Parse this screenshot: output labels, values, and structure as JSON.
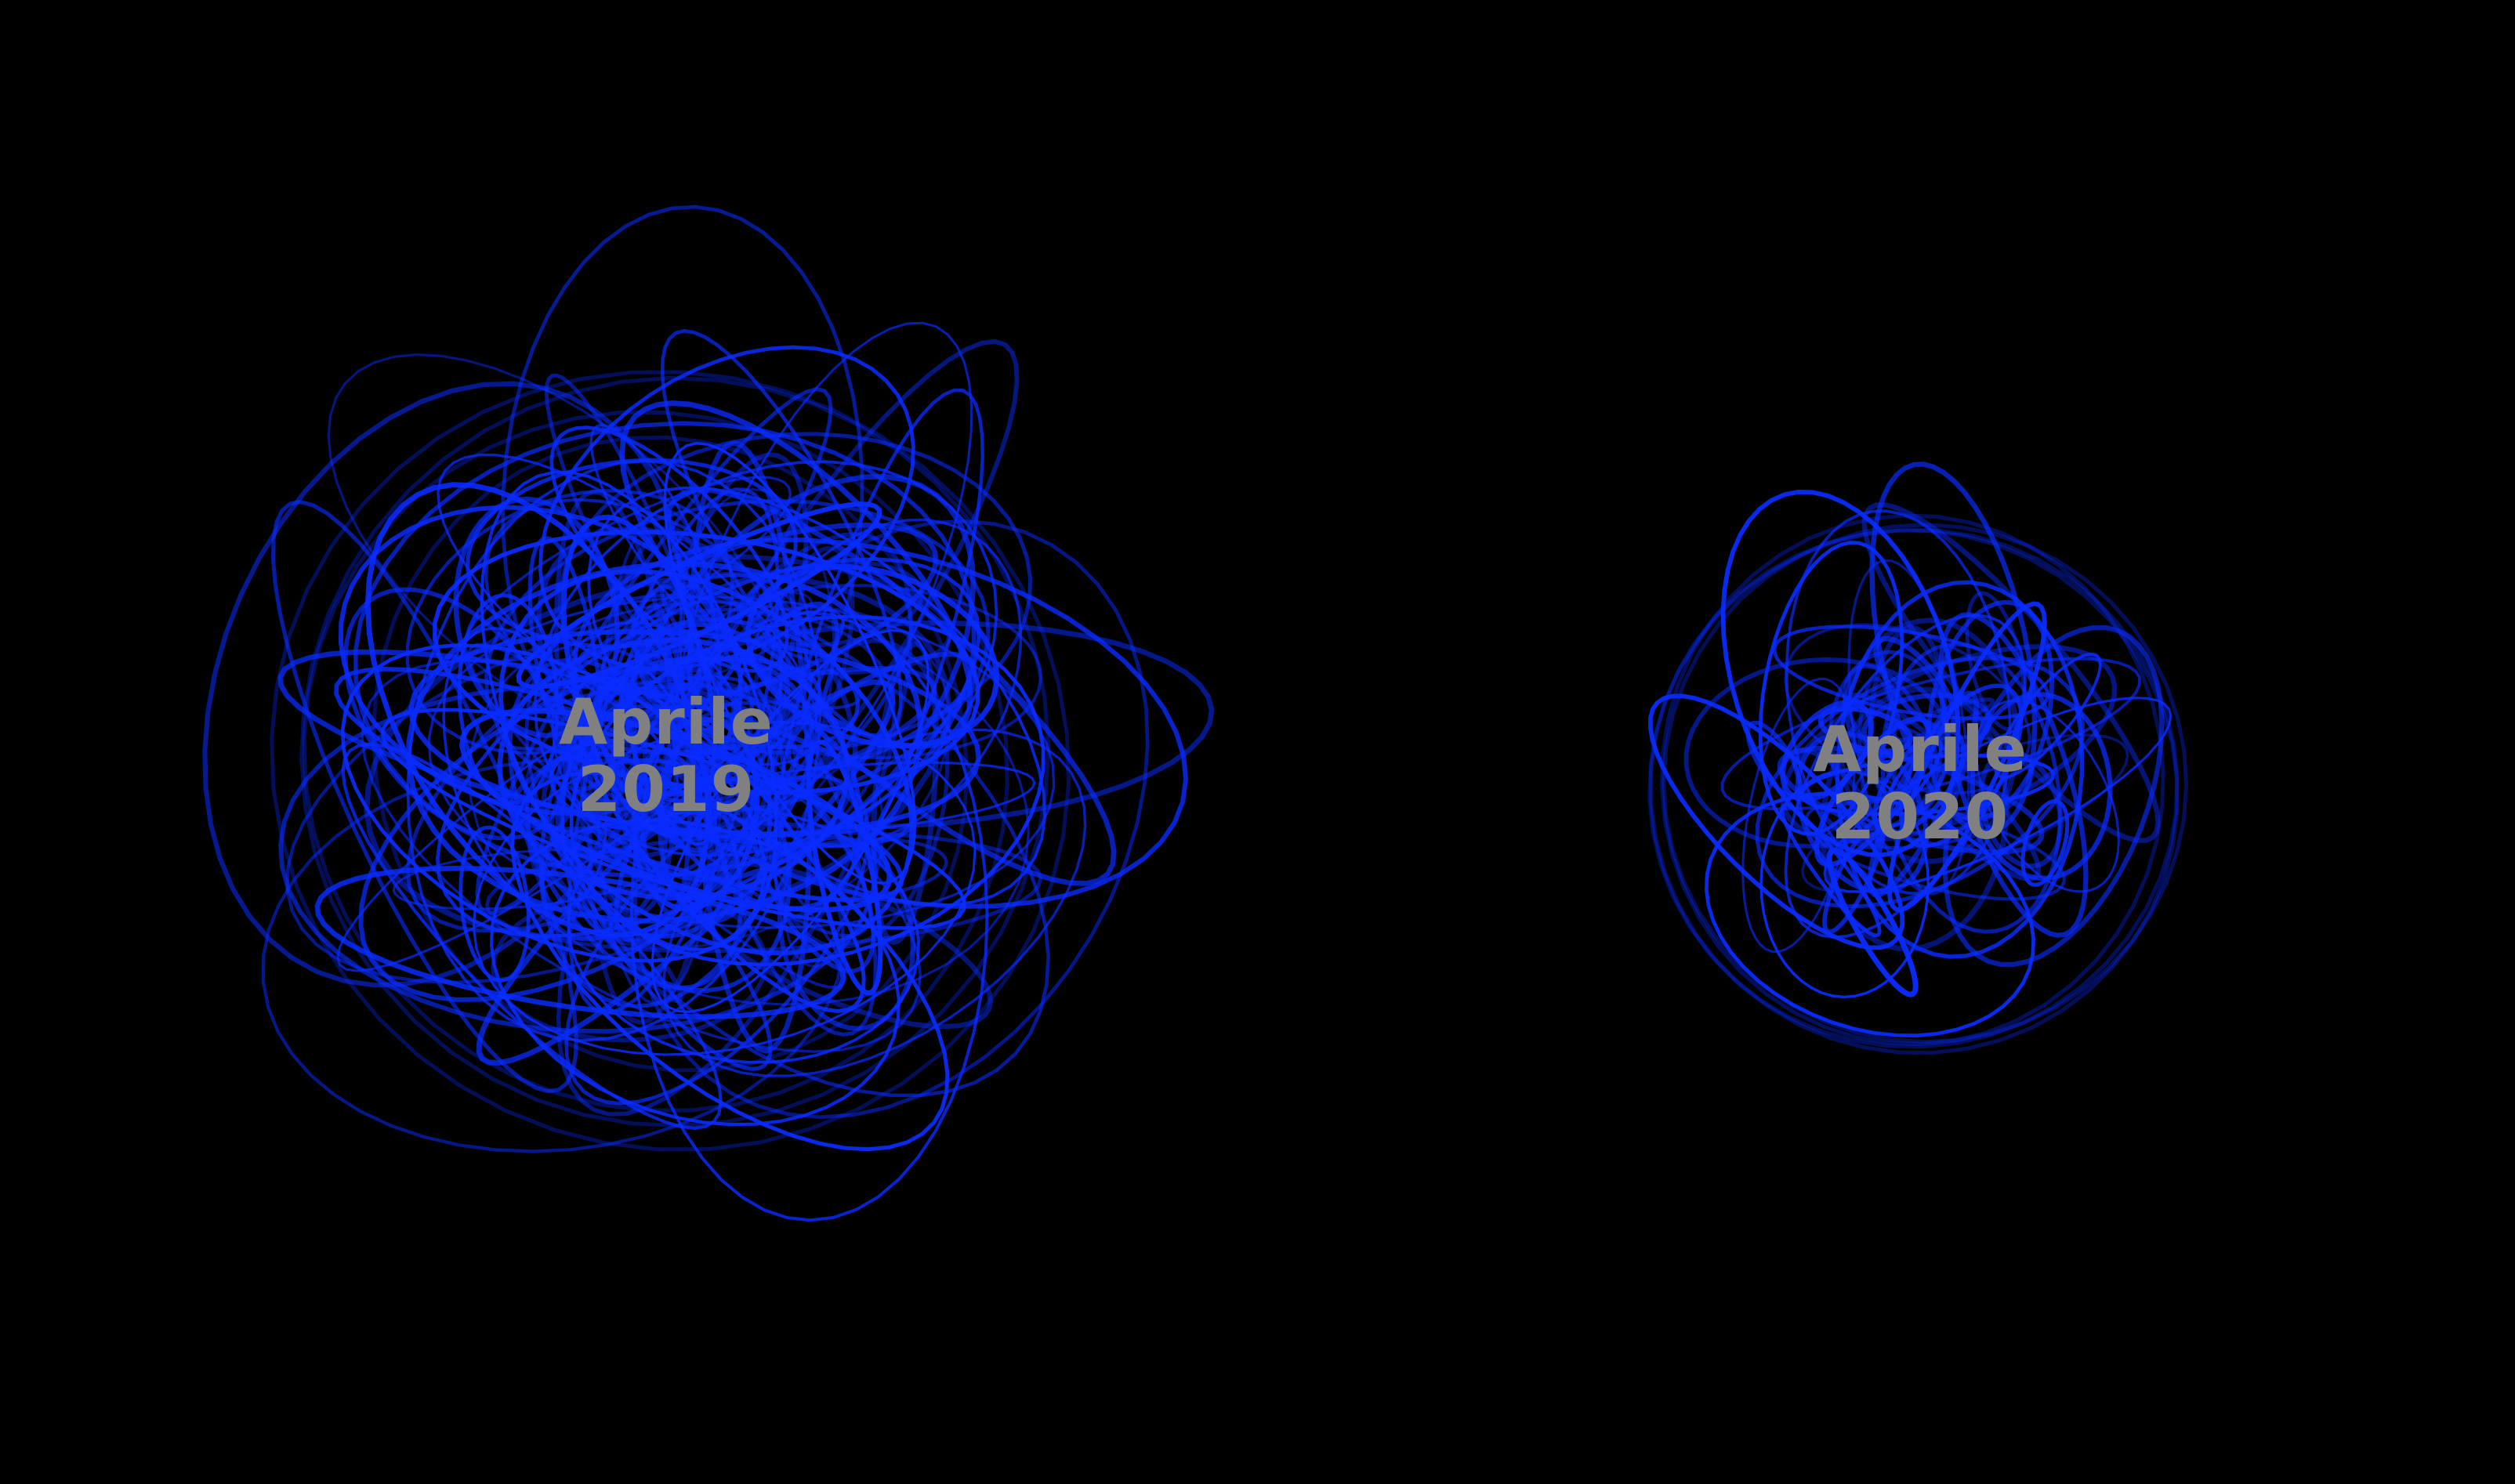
{
  "colors": {
    "background": "#000000",
    "stroke": "#0a2cff",
    "label": "#808080"
  },
  "clusters": [
    {
      "id": "2019",
      "label_line1": "Aprile",
      "label_line2": "2019",
      "loop_density": "high"
    },
    {
      "id": "2020",
      "label_line1": "Aprile",
      "label_line2": "2020",
      "loop_density": "medium"
    }
  ]
}
